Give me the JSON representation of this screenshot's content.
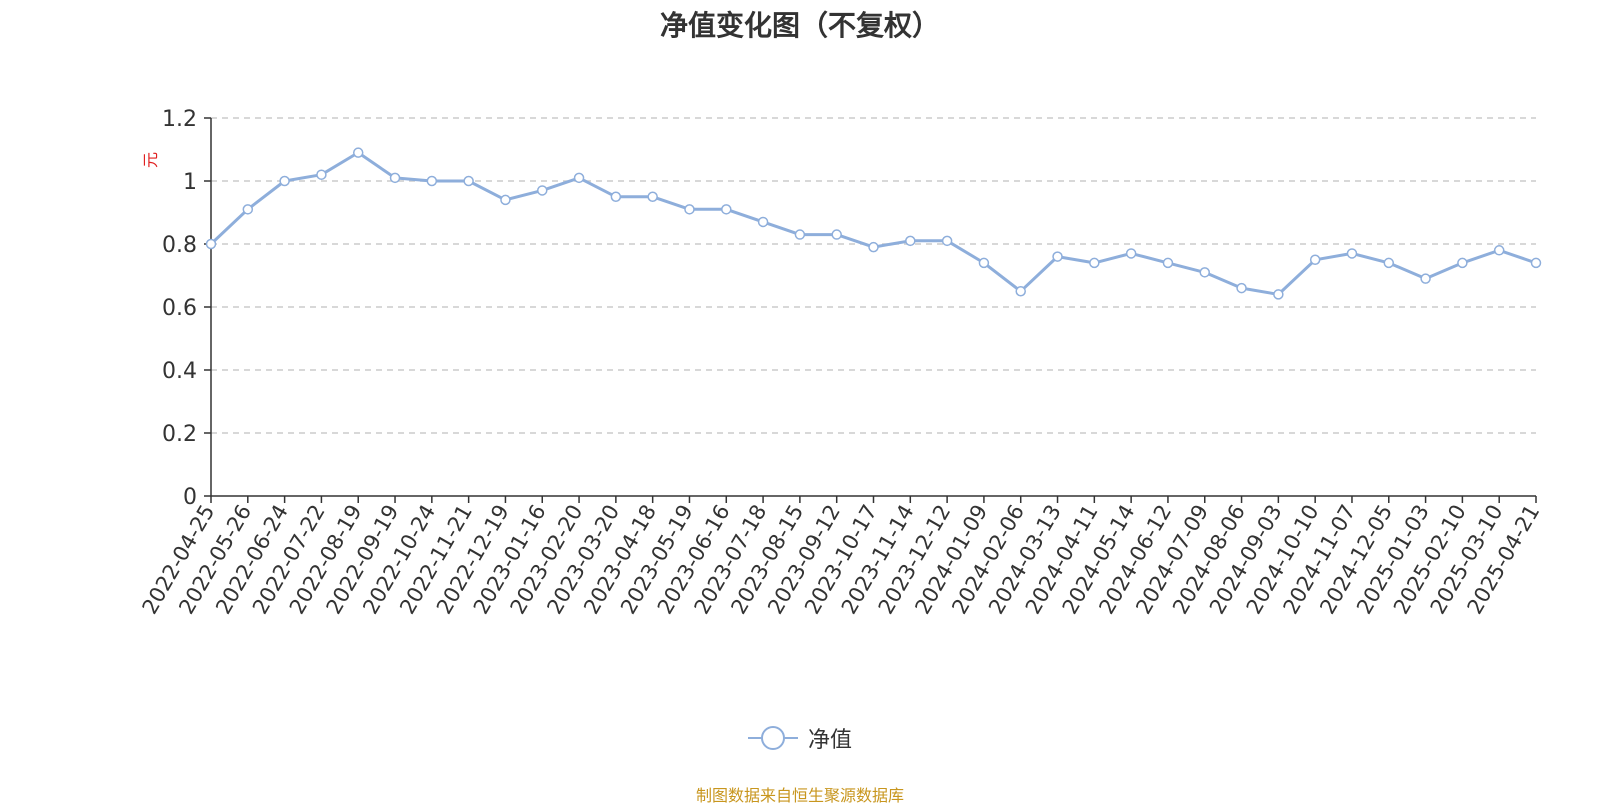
{
  "title": "净值变化图（不复权）",
  "source_note": "制图数据来自恒生聚源数据库",
  "colors": {
    "line": "#8eaedb",
    "axis": "#333333",
    "grid": "#cccccc",
    "ylabel": "#e02020",
    "source": "#c8961e"
  },
  "chart_data": {
    "type": "line",
    "title": "净值变化图（不复权）",
    "ylabel": "元",
    "ylim": [
      0,
      1.2
    ],
    "yticks": [
      "0",
      "0.2",
      "0.4",
      "0.6",
      "0.8",
      "1",
      "1.2"
    ],
    "grid": true,
    "legend_position": "bottom",
    "categories": [
      "2022-04-25",
      "2022-05-26",
      "2022-06-24",
      "2022-07-22",
      "2022-08-19",
      "2022-09-19",
      "2022-10-24",
      "2022-11-21",
      "2022-12-19",
      "2023-01-16",
      "2023-02-20",
      "2023-03-20",
      "2023-04-18",
      "2023-05-19",
      "2023-06-16",
      "2023-07-18",
      "2023-08-15",
      "2023-09-12",
      "2023-10-17",
      "2023-11-14",
      "2023-12-12",
      "2024-01-09",
      "2024-02-06",
      "2024-03-13",
      "2024-04-11",
      "2024-05-14",
      "2024-06-12",
      "2024-07-09",
      "2024-08-06",
      "2024-09-03",
      "2024-10-10",
      "2024-11-07",
      "2024-12-05",
      "2025-01-03",
      "2025-02-10",
      "2025-03-10",
      "2025-04-21"
    ],
    "series": [
      {
        "name": "净值",
        "marker": "circle",
        "values": [
          0.8,
          0.91,
          1.0,
          1.02,
          1.09,
          1.01,
          1.0,
          1.0,
          0.94,
          0.97,
          1.01,
          0.95,
          0.95,
          0.91,
          0.91,
          0.87,
          0.83,
          0.83,
          0.79,
          0.81,
          0.81,
          0.74,
          0.65,
          0.76,
          0.74,
          0.77,
          0.74,
          0.71,
          0.66,
          0.64,
          0.75,
          0.77,
          0.74,
          0.69,
          0.74,
          0.78,
          0.74
        ]
      }
    ]
  }
}
